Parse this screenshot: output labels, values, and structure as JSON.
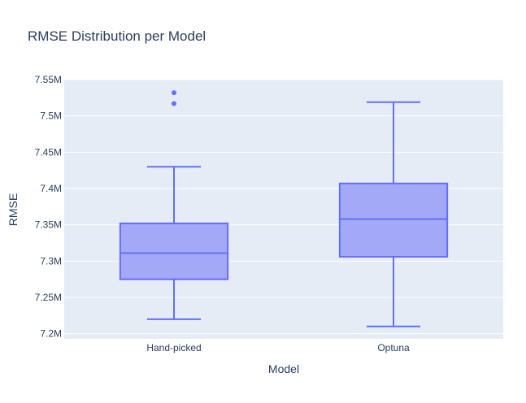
{
  "chart_data": {
    "type": "box",
    "title": "RMSE Distribution per Model",
    "xlabel": "Model",
    "ylabel": "RMSE",
    "categories": [
      "Hand-picked",
      "Optuna"
    ],
    "ylim": [
      7193000,
      7550000
    ],
    "yticks": [
      7200000,
      7250000,
      7300000,
      7350000,
      7400000,
      7450000,
      7500000,
      7550000
    ],
    "ytick_labels": [
      "7.2M",
      "7.25M",
      "7.3M",
      "7.35M",
      "7.4M",
      "7.45M",
      "7.5M",
      "7.55M"
    ],
    "grid": true,
    "legend": "none",
    "series": [
      {
        "category": "Hand-picked",
        "min": 7220000,
        "q1": 7275000,
        "median": 7311000,
        "q3": 7352000,
        "max": 7430000,
        "outliers": [
          7517000,
          7532000
        ]
      },
      {
        "category": "Optuna",
        "min": 7210000,
        "q1": 7306000,
        "median": 7358000,
        "q3": 7407000,
        "max": 7519000,
        "outliers": []
      }
    ],
    "colors": {
      "box_line": "#636efa",
      "box_fill": "#a3a9f7",
      "plot_bg": "#e5ecf6",
      "grid": "#ffffff",
      "text": "#2a3f5f"
    }
  }
}
